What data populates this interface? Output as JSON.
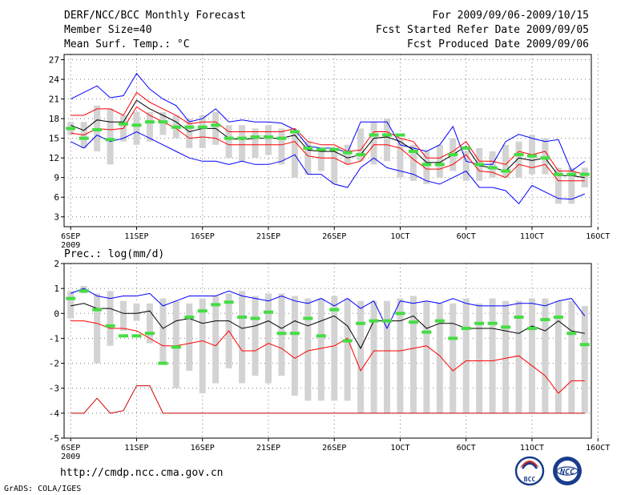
{
  "header": {
    "title": "DERF/NCC/BCC Monthly Forecast",
    "member_size": "Member Size=40",
    "variable_temp": "Mean Surf. Temp.: °C",
    "period": "For 2009/09/06-2009/10/15",
    "started": "Fcst Started Refer Date 2009/09/05",
    "produced": "Fcst Produced Date 2009/09/06"
  },
  "footer": {
    "url": "http://cmdp.ncc.cma.gov.cn",
    "grads": "GrADS: COLA/IGES",
    "logo_bcc": "BCC",
    "logo_ncc": "NCC"
  },
  "colors": {
    "bar": "#d3d3d3",
    "green": "#44dd44",
    "blue": "#0000ff",
    "red": "#ff0000",
    "darkred": "#cc0000",
    "black": "#000000",
    "grid": "#7a7a7a"
  },
  "x_labels": [
    {
      "day": 1,
      "text": "6SEP"
    },
    {
      "day": 6,
      "text": "11SEP"
    },
    {
      "day": 11,
      "text": "16SEP"
    },
    {
      "day": 16,
      "text": "21SEP"
    },
    {
      "day": 21,
      "text": "26SEP"
    },
    {
      "day": 26,
      "text": "1OCT"
    },
    {
      "day": 31,
      "text": "6OCT"
    },
    {
      "day": 36,
      "text": "11OCT"
    },
    {
      "day": 41,
      "text": "16OCT"
    }
  ],
  "x_year": "2009",
  "chart_data": [
    {
      "type": "line",
      "title": "Mean Surf. Temp.: °C",
      "ylabel": "°C",
      "xlim": [
        0.5,
        40.5
      ],
      "ylim": [
        1.5,
        27.8
      ],
      "yticks": [
        3,
        6,
        9,
        12,
        15,
        18,
        21,
        24,
        27
      ],
      "x": [
        1,
        2,
        3,
        4,
        5,
        6,
        7,
        8,
        9,
        10,
        11,
        12,
        13,
        14,
        15,
        16,
        17,
        18,
        19,
        20,
        21,
        22,
        23,
        24,
        25,
        26,
        27,
        28,
        29,
        30,
        31,
        32,
        33,
        34,
        35,
        36,
        37,
        38,
        39,
        40
      ],
      "bars": {
        "low": [
          15.5,
          13.5,
          13,
          11,
          14.5,
          14,
          14.5,
          15.5,
          15,
          13.5,
          13.5,
          14,
          12,
          11.5,
          12,
          12.5,
          11,
          9,
          9.5,
          10,
          8,
          11,
          11.5,
          11,
          11.5,
          9,
          8.5,
          8,
          9,
          10,
          8.5,
          8.5,
          9,
          9,
          9,
          9.5,
          9.5,
          5,
          5,
          7.5
        ],
        "high": [
          17.5,
          17.5,
          20,
          19.5,
          18.5,
          19,
          19,
          19,
          18.5,
          18,
          18.5,
          19,
          17,
          17,
          16.5,
          17,
          16.5,
          16,
          14.5,
          13.5,
          13,
          14,
          16.5,
          17.5,
          18,
          15,
          14,
          13,
          14,
          15,
          13,
          13.5,
          13,
          14,
          14.5,
          15.5,
          15,
          10.5,
          10.5,
          10.5
        ]
      },
      "series": [
        {
          "name": "ensemble-max",
          "color": "#0000ff",
          "values": [
            21.0,
            22.0,
            23.0,
            21.2,
            21.5,
            24.9,
            22.5,
            21.0,
            20.0,
            17.5,
            18.0,
            19.5,
            17.5,
            17.8,
            17.5,
            17.5,
            17.3,
            16.3,
            13.8,
            13.5,
            13.5,
            12.8,
            17.5,
            17.5,
            17.5,
            14.0,
            13.5,
            13.0,
            14.0,
            16.8,
            11.5,
            11.0,
            11.0,
            14.5,
            15.6,
            15.0,
            14.5,
            14.8,
            10.0,
            11.5
          ]
        },
        {
          "name": "upper-band",
          "color": "#ff0000",
          "values": [
            18.5,
            18.5,
            19.5,
            19.5,
            18.5,
            22.0,
            20.5,
            19.5,
            18.5,
            17.2,
            17.5,
            17.5,
            16.0,
            16.0,
            16.0,
            16.0,
            16.0,
            16.5,
            14.5,
            14.0,
            14.0,
            13.0,
            13.2,
            16.0,
            16.0,
            15.0,
            14.5,
            12.0,
            12.0,
            13.0,
            14.5,
            11.5,
            11.5,
            11.0,
            13.0,
            12.5,
            13.0,
            10.0,
            10.0,
            9.5
          ]
        },
        {
          "name": "ensemble-mean",
          "color": "#000000",
          "values": [
            17.0,
            16.2,
            17.8,
            17.5,
            17.5,
            20.8,
            19.5,
            18.5,
            17.5,
            16.0,
            16.5,
            16.5,
            15.0,
            14.8,
            15.0,
            15.0,
            15.0,
            15.5,
            13.2,
            13.0,
            13.0,
            12.0,
            12.5,
            15.0,
            15.2,
            14.5,
            13.2,
            11.3,
            11.3,
            12.5,
            13.8,
            10.8,
            10.5,
            10.0,
            12.0,
            11.6,
            12.0,
            9.3,
            9.3,
            9.0
          ]
        },
        {
          "name": "lower-band",
          "color": "#ff0000",
          "values": [
            15.8,
            15.5,
            16.5,
            16.3,
            16.5,
            19.8,
            18.5,
            17.5,
            16.5,
            15.0,
            15.2,
            15.0,
            14.0,
            14.0,
            14.0,
            14.0,
            14.0,
            14.5,
            12.3,
            12.0,
            12.0,
            11.0,
            11.5,
            14.0,
            14.0,
            13.5,
            11.8,
            10.3,
            10.3,
            11.0,
            12.5,
            10.0,
            9.8,
            9.0,
            11.0,
            10.5,
            11.0,
            8.5,
            8.5,
            8.5
          ]
        },
        {
          "name": "ensemble-min",
          "color": "#0000ff",
          "values": [
            14.5,
            13.5,
            15.5,
            14.5,
            15.0,
            16.0,
            15.0,
            14.0,
            13.0,
            12.0,
            11.5,
            11.5,
            11.0,
            11.5,
            11.0,
            11.0,
            11.5,
            12.5,
            9.5,
            9.5,
            8.0,
            7.5,
            10.5,
            12.0,
            10.5,
            10.0,
            9.5,
            8.5,
            8.0,
            9.0,
            10.0,
            7.5,
            7.5,
            7.0,
            5.0,
            7.8,
            6.8,
            5.8,
            5.7,
            6.5
          ]
        }
      ],
      "markers": {
        "name": "observed-climatology",
        "color": "#44dd44",
        "values": [
          16.5,
          15.0,
          16.3,
          14.8,
          17.2,
          17.0,
          17.5,
          17.5,
          16.7,
          16.7,
          16.7,
          17.0,
          15.0,
          15.0,
          15.2,
          15.2,
          15.0,
          16.0,
          13.5,
          13.3,
          13.3,
          12.8,
          12.5,
          15.5,
          15.5,
          15.5,
          13.0,
          11.0,
          11.0,
          12.5,
          13.5,
          11.0,
          10.5,
          10.0,
          12.5,
          12.3,
          12.0,
          9.5,
          9.5,
          9.5
        ]
      }
    },
    {
      "type": "line",
      "title": "Prec.: log(mm/d)",
      "ylabel": "log(mm/d)",
      "xlim": [
        0.5,
        40.5
      ],
      "ylim": [
        -5,
        2
      ],
      "yticks": [
        -5,
        -4,
        -3,
        -2,
        -1,
        0,
        1,
        2
      ],
      "x": [
        1,
        2,
        3,
        4,
        5,
        6,
        7,
        8,
        9,
        10,
        11,
        12,
        13,
        14,
        15,
        16,
        17,
        18,
        19,
        20,
        21,
        22,
        23,
        24,
        25,
        26,
        27,
        28,
        29,
        30,
        31,
        32,
        33,
        34,
        35,
        36,
        37,
        38,
        39,
        40
      ],
      "bars": {
        "low": [
          -0.2,
          0.8,
          -2.0,
          -1.3,
          -0.7,
          -0.3,
          -1.2,
          -2.0,
          -3.0,
          -2.3,
          -3.2,
          -2.8,
          -2.2,
          -2.8,
          -2.5,
          -2.8,
          -2.5,
          -3.3,
          -3.5,
          -3.5,
          -3.5,
          -3.5,
          -4.0,
          -4.0,
          -4.0,
          -4.0,
          -4.0,
          -4.0,
          -4.0,
          -4.0,
          -4.0,
          -4.0,
          -4.0,
          -4.0,
          -4.0,
          -4.0,
          -4.0,
          -4.0,
          -4.0,
          -4.0
        ],
        "high": [
          0.9,
          1.1,
          0.8,
          0.9,
          0.5,
          0.4,
          0.4,
          0.6,
          0.5,
          0.4,
          0.6,
          0.7,
          0.8,
          0.9,
          0.7,
          0.8,
          0.8,
          0.7,
          0.6,
          0.6,
          0.7,
          0.6,
          0.5,
          0.5,
          0.5,
          0.6,
          0.7,
          0.5,
          0.4,
          0.4,
          0.6,
          0.4,
          0.6,
          0.5,
          0.5,
          0.6,
          0.6,
          0.5,
          0.5,
          0.3
        ]
      },
      "series": [
        {
          "name": "ensemble-max",
          "color": "#0000ff",
          "values": [
            0.8,
            1.0,
            0.7,
            0.6,
            0.7,
            0.7,
            0.8,
            0.3,
            0.5,
            0.7,
            0.7,
            0.7,
            0.9,
            0.7,
            0.6,
            0.5,
            0.7,
            0.5,
            0.4,
            0.6,
            0.3,
            0.6,
            0.2,
            0.5,
            -0.6,
            0.5,
            0.4,
            0.5,
            0.4,
            0.6,
            0.4,
            0.3,
            0.3,
            0.3,
            0.4,
            0.4,
            0.3,
            0.5,
            0.6,
            -0.1
          ]
        },
        {
          "name": "ensemble-mean",
          "color": "#000000",
          "values": [
            0.3,
            0.4,
            0.2,
            0.2,
            0.0,
            0.0,
            0.1,
            -0.6,
            -0.3,
            -0.2,
            -0.4,
            -0.3,
            -0.3,
            -0.6,
            -0.5,
            -0.3,
            -0.6,
            -0.3,
            -0.5,
            -0.3,
            -0.1,
            -0.5,
            -1.4,
            -0.3,
            -0.3,
            -0.3,
            -0.1,
            -0.6,
            -0.4,
            -0.4,
            -0.6,
            -0.6,
            -0.6,
            -0.7,
            -0.8,
            -0.5,
            -0.7,
            -0.3,
            -0.7,
            -0.8
          ]
        },
        {
          "name": "lower-band",
          "color": "#ff0000",
          "values": [
            -0.3,
            -0.3,
            -0.4,
            -0.6,
            -0.6,
            -0.7,
            -1.0,
            -1.3,
            -1.3,
            -1.2,
            -1.1,
            -1.3,
            -0.7,
            -1.5,
            -1.5,
            -1.2,
            -1.4,
            -1.8,
            -1.5,
            -1.4,
            -1.3,
            -1.0,
            -2.3,
            -1.5,
            -1.5,
            -1.5,
            -1.4,
            -1.3,
            -1.7,
            -2.3,
            -1.9,
            -1.9,
            -1.9,
            -1.8,
            -1.7,
            -2.1,
            -2.5,
            -3.2,
            -2.7,
            -2.7
          ]
        },
        {
          "name": "ensemble-min",
          "color": "#cc0000",
          "values": [
            -4.0,
            -4.0,
            -3.4,
            -4.0,
            -3.9,
            -2.9,
            -2.9,
            -4.0,
            -4.0,
            -4.0,
            -4.0,
            -4.0,
            -4.0,
            -4.0,
            -4.0,
            -4.0,
            -4.0,
            -4.0,
            -4.0,
            -4.0,
            -4.0,
            -4.0,
            -4.0,
            -4.0,
            -4.0,
            -4.0,
            -4.0,
            -4.0,
            -4.0,
            -4.0,
            -4.0,
            -4.0,
            -4.0,
            -4.0,
            -4.0,
            -4.0,
            -4.0,
            -4.0,
            -4.0,
            -4.0
          ]
        }
      ],
      "markers": {
        "name": "observed-climatology",
        "color": "#44dd44",
        "values": [
          0.6,
          0.9,
          0.15,
          -0.5,
          -0.9,
          -0.9,
          -0.8,
          -2.0,
          -1.35,
          -0.15,
          0.1,
          0.35,
          0.45,
          -0.15,
          -0.2,
          0.05,
          -0.8,
          -0.8,
          -0.2,
          -0.9,
          0.15,
          -1.1,
          -0.4,
          -0.3,
          -0.3,
          0.0,
          -0.35,
          -0.75,
          -0.3,
          -1.0,
          -0.6,
          -0.4,
          -0.4,
          -0.55,
          -0.15,
          -0.6,
          -0.25,
          -0.15,
          -0.8,
          -1.25
        ]
      }
    }
  ]
}
